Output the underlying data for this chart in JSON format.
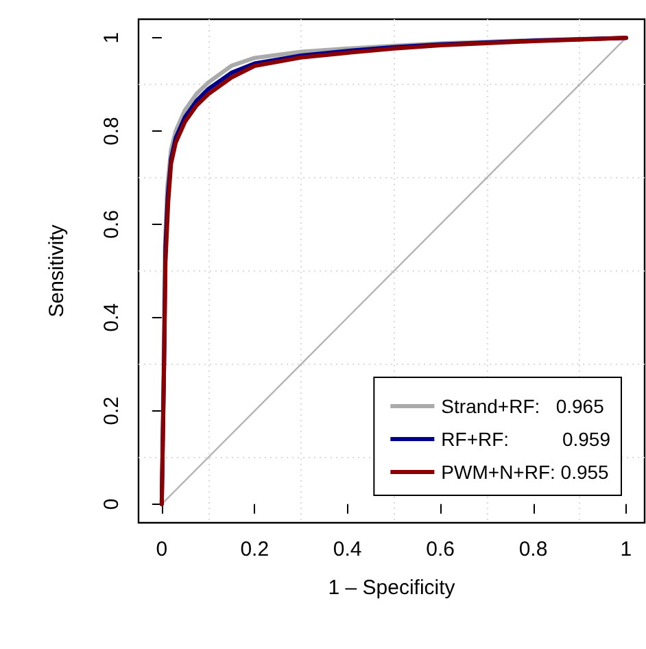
{
  "chart_data": {
    "type": "line",
    "xlabel": "1 – Specificity",
    "ylabel": "Sensitivity",
    "xlim": [
      -0.05,
      1.04
    ],
    "ylim": [
      -0.04,
      1.04
    ],
    "xticks": [
      0,
      0.2,
      0.4,
      0.6,
      0.8,
      1
    ],
    "yticks": [
      0,
      0.2,
      0.4,
      0.6,
      0.8,
      1
    ],
    "grid": true,
    "legend": "bottom right",
    "marker": "none",
    "line_style": "solid",
    "series": [
      {
        "color": "#b3b3b3",
        "x": [
          0,
          1
        ],
        "values": [
          0,
          1
        ]
      },
      {
        "name": "Strand+RF:   0.965",
        "color": "#aaaaaa",
        "x": [
          0,
          0.004,
          0.007,
          0.012,
          0.02,
          0.03,
          0.05,
          0.075,
          0.1,
          0.15,
          0.2,
          0.3,
          0.4,
          0.5,
          0.6,
          0.8,
          1
        ],
        "values": [
          0,
          0.3,
          0.55,
          0.68,
          0.76,
          0.8,
          0.845,
          0.88,
          0.904,
          0.94,
          0.957,
          0.97,
          0.977,
          0.983,
          0.988,
          0.995,
          1
        ]
      },
      {
        "name": "RF+RF:          0.959",
        "color": "#00008b",
        "x": [
          0,
          0.005,
          0.008,
          0.013,
          0.02,
          0.03,
          0.05,
          0.075,
          0.1,
          0.15,
          0.2,
          0.3,
          0.4,
          0.5,
          0.6,
          0.8,
          1
        ],
        "values": [
          0,
          0.3,
          0.55,
          0.66,
          0.74,
          0.785,
          0.83,
          0.865,
          0.89,
          0.925,
          0.945,
          0.962,
          0.972,
          0.98,
          0.986,
          0.994,
          1
        ]
      },
      {
        "name": "PWM+N+RF: 0.955",
        "color": "#8b0000",
        "x": [
          0,
          0.005,
          0.008,
          0.014,
          0.02,
          0.03,
          0.05,
          0.075,
          0.1,
          0.15,
          0.2,
          0.3,
          0.4,
          0.5,
          0.6,
          0.8,
          1
        ],
        "values": [
          0,
          0.3,
          0.52,
          0.65,
          0.73,
          0.775,
          0.82,
          0.855,
          0.879,
          0.915,
          0.94,
          0.958,
          0.968,
          0.977,
          0.984,
          0.993,
          1
        ]
      }
    ]
  }
}
